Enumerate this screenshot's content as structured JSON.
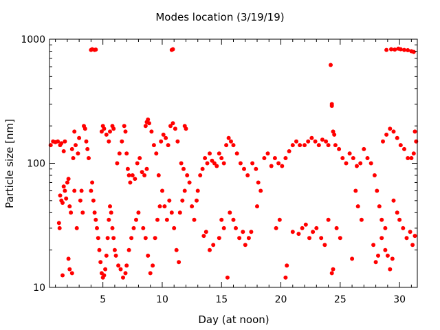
{
  "chart_data": {
    "type": "scatter",
    "title": "Modes location (3/19/19)",
    "xlabel": "Day (at noon)",
    "ylabel": "Particle size [nm]",
    "xlim": [
      0.5,
      31.5
    ],
    "ylim": [
      10,
      1000
    ],
    "yscale": "log",
    "x_ticks": [
      5,
      10,
      15,
      20,
      25,
      30
    ],
    "x_tick_labels": [
      "5",
      "10",
      "15",
      "20",
      "25",
      "30"
    ],
    "y_ticks": [
      10,
      100,
      1000
    ],
    "y_tick_labels": [
      "10",
      "100",
      "1000"
    ],
    "grid": false,
    "marker_color": "#ff0000",
    "series": [
      {
        "values_note_exempt": true,
        "points": [
          [
            0.6,
            140
          ],
          [
            0.8,
            150
          ],
          [
            1.0,
            148
          ],
          [
            1.2,
            150
          ],
          [
            1.4,
            140
          ],
          [
            1.5,
            145
          ],
          [
            1.7,
            125
          ],
          [
            1.8,
            150
          ],
          [
            1.4,
            55
          ],
          [
            1.5,
            50
          ],
          [
            1.6,
            48
          ],
          [
            1.7,
            65
          ],
          [
            1.8,
            60
          ],
          [
            1.9,
            52
          ],
          [
            2.0,
            70
          ],
          [
            2.1,
            75
          ],
          [
            2.2,
            45
          ],
          [
            2.3,
            40
          ],
          [
            2.4,
            130
          ],
          [
            2.5,
            110
          ],
          [
            2.6,
            180
          ],
          [
            2.7,
            140
          ],
          [
            2.9,
            120
          ],
          [
            3.0,
            160
          ],
          [
            3.1,
            50
          ],
          [
            3.2,
            60
          ],
          [
            3.3,
            40
          ],
          [
            3.4,
            200
          ],
          [
            3.5,
            190
          ],
          [
            3.6,
            150
          ],
          [
            3.7,
            130
          ],
          [
            3.8,
            110
          ],
          [
            1.3,
            33
          ],
          [
            1.35,
            30
          ],
          [
            1.6,
            12.5
          ],
          [
            2.1,
            17
          ],
          [
            2.2,
            14
          ],
          [
            2.4,
            13
          ],
          [
            2.6,
            60
          ],
          [
            2.8,
            30
          ],
          [
            4.0,
            60
          ],
          [
            4.1,
            70
          ],
          [
            4.2,
            50
          ],
          [
            4.3,
            40
          ],
          [
            4.4,
            35
          ],
          [
            4.5,
            30
          ],
          [
            4.6,
            25
          ],
          [
            4.7,
            20
          ],
          [
            4.8,
            16
          ],
          [
            4.9,
            13
          ],
          [
            5.0,
            12
          ],
          [
            5.1,
            12.5
          ],
          [
            5.2,
            14
          ],
          [
            5.3,
            18
          ],
          [
            5.4,
            25
          ],
          [
            5.5,
            35
          ],
          [
            4.0,
            820
          ],
          [
            4.1,
            830
          ],
          [
            4.3,
            820
          ],
          [
            4.4,
            825
          ],
          [
            4.9,
            180
          ],
          [
            5.0,
            200
          ],
          [
            5.1,
            190
          ],
          [
            5.3,
            170
          ],
          [
            5.5,
            150
          ],
          [
            5.6,
            180
          ],
          [
            5.8,
            200
          ],
          [
            5.9,
            190
          ],
          [
            5.6,
            45
          ],
          [
            5.7,
            40
          ],
          [
            5.8,
            30
          ],
          [
            5.9,
            25
          ],
          [
            6.0,
            20
          ],
          [
            6.1,
            18
          ],
          [
            6.3,
            15
          ],
          [
            6.5,
            14
          ],
          [
            6.2,
            100
          ],
          [
            6.4,
            120
          ],
          [
            6.6,
            150
          ],
          [
            6.8,
            200
          ],
          [
            6.9,
            180
          ],
          [
            7.0,
            120
          ],
          [
            7.1,
            90
          ],
          [
            7.2,
            80
          ],
          [
            6.7,
            12
          ],
          [
            6.9,
            13
          ],
          [
            7.0,
            15
          ],
          [
            7.2,
            20
          ],
          [
            7.4,
            25
          ],
          [
            7.6,
            30
          ],
          [
            7.8,
            35
          ],
          [
            8.0,
            40
          ],
          [
            7.3,
            70
          ],
          [
            7.5,
            80
          ],
          [
            7.7,
            75
          ],
          [
            7.9,
            100
          ],
          [
            8.1,
            110
          ],
          [
            8.3,
            85
          ],
          [
            8.5,
            80
          ],
          [
            8.7,
            90
          ],
          [
            8.6,
            200
          ],
          [
            8.7,
            215
          ],
          [
            8.8,
            225
          ],
          [
            8.9,
            210
          ],
          [
            9.1,
            180
          ],
          [
            9.3,
            140
          ],
          [
            9.5,
            120
          ],
          [
            9.7,
            80
          ],
          [
            8.4,
            30
          ],
          [
            8.6,
            25
          ],
          [
            8.8,
            18
          ],
          [
            9.0,
            13
          ],
          [
            9.2,
            15
          ],
          [
            9.4,
            25
          ],
          [
            9.6,
            35
          ],
          [
            9.8,
            45
          ],
          [
            9.9,
            150
          ],
          [
            10.1,
            170
          ],
          [
            10.3,
            160
          ],
          [
            10.5,
            140
          ],
          [
            10.7,
            200
          ],
          [
            10.9,
            210
          ],
          [
            11.1,
            190
          ],
          [
            11.3,
            150
          ],
          [
            10.0,
            60
          ],
          [
            10.2,
            45
          ],
          [
            10.4,
            35
          ],
          [
            10.6,
            50
          ],
          [
            10.8,
            40
          ],
          [
            11.0,
            30
          ],
          [
            11.2,
            20
          ],
          [
            11.4,
            16
          ],
          [
            10.8,
            820
          ],
          [
            10.9,
            830
          ],
          [
            11.5,
            40
          ],
          [
            11.7,
            50
          ],
          [
            11.9,
            60
          ],
          [
            12.1,
            80
          ],
          [
            12.3,
            70
          ],
          [
            12.5,
            45
          ],
          [
            12.7,
            35
          ],
          [
            12.9,
            50
          ],
          [
            11.6,
            100
          ],
          [
            11.8,
            90
          ],
          [
            12.0,
            190
          ],
          [
            11.9,
            200
          ],
          [
            13.0,
            60
          ],
          [
            13.2,
            80
          ],
          [
            13.4,
            90
          ],
          [
            13.6,
            110
          ],
          [
            13.8,
            100
          ],
          [
            14.0,
            120
          ],
          [
            14.2,
            105
          ],
          [
            14.4,
            100
          ],
          [
            14.6,
            95
          ],
          [
            14.8,
            120
          ],
          [
            15.0,
            110
          ],
          [
            15.2,
            100
          ],
          [
            13.5,
            26
          ],
          [
            13.7,
            28
          ],
          [
            14.0,
            20
          ],
          [
            14.3,
            22
          ],
          [
            14.8,
            25
          ],
          [
            15.0,
            35
          ],
          [
            15.2,
            30
          ],
          [
            15.5,
            12
          ],
          [
            15.4,
            140
          ],
          [
            15.6,
            160
          ],
          [
            15.8,
            150
          ],
          [
            16.0,
            140
          ],
          [
            16.3,
            120
          ],
          [
            16.6,
            100
          ],
          [
            16.9,
            90
          ],
          [
            17.2,
            80
          ],
          [
            15.7,
            40
          ],
          [
            16.0,
            35
          ],
          [
            16.2,
            30
          ],
          [
            16.5,
            25
          ],
          [
            16.8,
            28
          ],
          [
            17.0,
            22
          ],
          [
            17.3,
            25
          ],
          [
            17.5,
            28
          ],
          [
            17.6,
            100
          ],
          [
            17.9,
            90
          ],
          [
            18.1,
            70
          ],
          [
            18.3,
            60
          ],
          [
            18.0,
            45
          ],
          [
            18.6,
            110
          ],
          [
            18.9,
            120
          ],
          [
            19.2,
            95
          ],
          [
            19.5,
            110
          ],
          [
            19.8,
            100
          ],
          [
            20.1,
            95
          ],
          [
            20.4,
            110
          ],
          [
            20.7,
            125
          ],
          [
            21.0,
            140
          ],
          [
            21.3,
            150
          ],
          [
            21.6,
            140
          ],
          [
            19.6,
            30
          ],
          [
            19.9,
            35
          ],
          [
            20.4,
            12
          ],
          [
            20.5,
            15
          ],
          [
            21.0,
            28
          ],
          [
            21.5,
            27
          ],
          [
            21.8,
            30
          ],
          [
            22.1,
            32
          ],
          [
            22.0,
            140
          ],
          [
            22.3,
            150
          ],
          [
            22.6,
            160
          ],
          [
            22.9,
            150
          ],
          [
            23.2,
            140
          ],
          [
            23.5,
            155
          ],
          [
            23.8,
            150
          ],
          [
            24.0,
            140
          ],
          [
            22.4,
            25
          ],
          [
            22.7,
            28
          ],
          [
            23.0,
            30
          ],
          [
            23.4,
            25
          ],
          [
            23.7,
            22
          ],
          [
            24.0,
            35
          ],
          [
            24.2,
            620
          ],
          [
            24.3,
            300
          ],
          [
            24.3,
            290
          ],
          [
            24.4,
            180
          ],
          [
            24.5,
            170
          ],
          [
            24.3,
            13
          ],
          [
            24.4,
            14
          ],
          [
            24.6,
            140
          ],
          [
            24.9,
            130
          ],
          [
            25.2,
            110
          ],
          [
            25.5,
            100
          ],
          [
            25.8,
            120
          ],
          [
            26.1,
            110
          ],
          [
            26.4,
            95
          ],
          [
            26.7,
            100
          ],
          [
            24.7,
            30
          ],
          [
            25.0,
            25
          ],
          [
            26.0,
            17
          ],
          [
            26.3,
            60
          ],
          [
            26.5,
            45
          ],
          [
            26.8,
            35
          ],
          [
            27.0,
            130
          ],
          [
            27.3,
            110
          ],
          [
            27.6,
            100
          ],
          [
            27.9,
            80
          ],
          [
            28.1,
            60
          ],
          [
            28.3,
            45
          ],
          [
            28.5,
            35
          ],
          [
            28.8,
            30
          ],
          [
            27.8,
            22
          ],
          [
            28.0,
            16
          ],
          [
            28.2,
            18
          ],
          [
            28.5,
            25
          ],
          [
            28.8,
            20
          ],
          [
            29.0,
            18
          ],
          [
            29.2,
            14
          ],
          [
            29.4,
            17
          ],
          [
            28.6,
            150
          ],
          [
            28.9,
            170
          ],
          [
            29.2,
            190
          ],
          [
            29.5,
            180
          ],
          [
            29.8,
            160
          ],
          [
            30.1,
            140
          ],
          [
            30.4,
            130
          ],
          [
            30.7,
            110
          ],
          [
            28.9,
            820
          ],
          [
            29.3,
            830
          ],
          [
            29.6,
            825
          ],
          [
            29.9,
            840
          ],
          [
            30.1,
            830
          ],
          [
            30.4,
            820
          ],
          [
            30.7,
            815
          ],
          [
            31.0,
            800
          ],
          [
            31.2,
            790
          ],
          [
            29.5,
            50
          ],
          [
            29.8,
            40
          ],
          [
            30.0,
            35
          ],
          [
            30.3,
            30
          ],
          [
            30.6,
            25
          ],
          [
            30.9,
            28
          ],
          [
            31.1,
            22
          ],
          [
            31.3,
            26
          ],
          [
            31.0,
            110
          ],
          [
            31.2,
            120
          ],
          [
            31.3,
            180
          ],
          [
            31.4,
            150
          ]
        ]
      }
    ]
  }
}
